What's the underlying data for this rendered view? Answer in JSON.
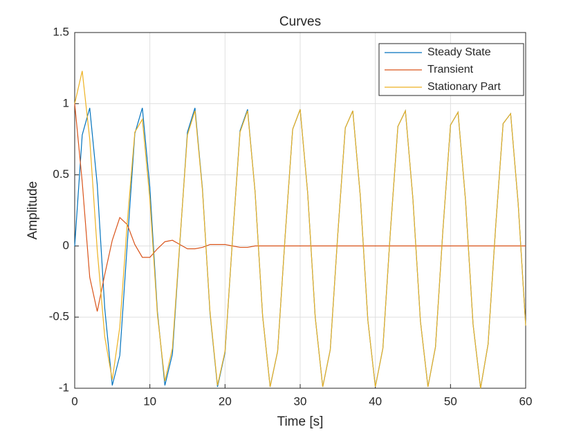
{
  "chart_data": {
    "type": "line",
    "title": "Curves",
    "xlabel": "Time [s]",
    "ylabel": "Amplitude",
    "x": [
      0,
      1,
      2,
      3,
      4,
      5,
      6,
      7,
      8,
      9,
      10,
      11,
      12,
      13,
      14,
      15,
      16,
      17,
      18,
      19,
      20,
      21,
      22,
      23,
      24,
      25,
      26,
      27,
      28,
      29,
      30,
      31,
      32,
      33,
      34,
      35,
      36,
      37,
      38,
      39,
      40,
      41,
      42,
      43,
      44,
      45,
      46,
      47,
      48,
      49,
      50,
      51,
      52,
      53,
      54,
      55,
      56,
      57,
      58,
      59,
      60
    ],
    "series": [
      {
        "name": "Steady State",
        "color": "#0072BD",
        "values": [
          0,
          0.78,
          0.97,
          0.43,
          -0.44,
          -0.98,
          -0.77,
          0.02,
          0.79,
          0.97,
          0.41,
          -0.46,
          -0.98,
          -0.76,
          0.03,
          0.8,
          0.97,
          0.4,
          -0.47,
          -0.99,
          -0.75,
          0.05,
          0.81,
          0.96,
          0.38,
          -0.49,
          -0.99,
          -0.74,
          0.07,
          0.82,
          0.96,
          0.37,
          -0.5,
          -0.99,
          -0.73,
          0.08,
          0.83,
          0.95,
          0.35,
          -0.52,
          -0.99,
          -0.72,
          0.1,
          0.84,
          0.95,
          0.33,
          -0.53,
          -0.99,
          -0.71,
          0.12,
          0.85,
          0.94,
          0.32,
          -0.55,
          -1.0,
          -0.69,
          0.13,
          0.86,
          0.93,
          0.3,
          -0.56
        ]
      },
      {
        "name": "Transient",
        "color": "#D95319",
        "values": [
          1,
          0.45,
          -0.22,
          -0.46,
          -0.2,
          0.04,
          0.2,
          0.15,
          0.01,
          -0.08,
          -0.08,
          -0.02,
          0.03,
          0.04,
          0.01,
          -0.02,
          -0.02,
          -0.01,
          0.01,
          0.01,
          0.01,
          0,
          -0.01,
          -0.01,
          0,
          0,
          0,
          0,
          0,
          0,
          0,
          0,
          0,
          0,
          0,
          0,
          0,
          0,
          0,
          0,
          0,
          0,
          0,
          0,
          0,
          0,
          0,
          0,
          0,
          0,
          0,
          0,
          0,
          0,
          0,
          0,
          0,
          0,
          0,
          0,
          0
        ]
      },
      {
        "name": "Stationary Part",
        "color": "#EDB120",
        "values": [
          1.0,
          1.23,
          0.75,
          -0.03,
          -0.64,
          -0.94,
          -0.57,
          0.17,
          0.8,
          0.89,
          0.33,
          -0.48,
          -0.95,
          -0.72,
          0.04,
          0.78,
          0.95,
          0.39,
          -0.46,
          -0.98,
          -0.74,
          0.05,
          0.8,
          0.95,
          0.38,
          -0.49,
          -0.99,
          -0.74,
          0.07,
          0.82,
          0.96,
          0.37,
          -0.5,
          -0.99,
          -0.73,
          0.08,
          0.83,
          0.95,
          0.35,
          -0.52,
          -0.99,
          -0.72,
          0.1,
          0.84,
          0.95,
          0.33,
          -0.53,
          -0.99,
          -0.71,
          0.12,
          0.85,
          0.94,
          0.32,
          -0.55,
          -1.0,
          -0.69,
          0.13,
          0.86,
          0.93,
          0.3,
          -0.56
        ]
      }
    ],
    "xlim": [
      0,
      60
    ],
    "xticks": [
      0,
      10,
      20,
      30,
      40,
      50,
      60
    ],
    "ylim": [
      -1,
      1.5
    ],
    "yticks": [
      -1,
      -0.5,
      0,
      0.5,
      1,
      1.5
    ],
    "grid": true,
    "legend": "northeast"
  }
}
